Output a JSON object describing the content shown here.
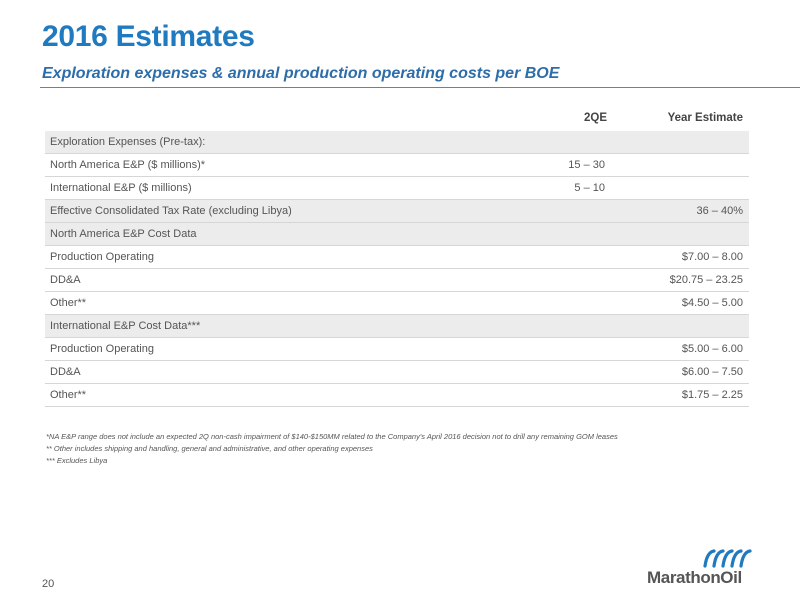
{
  "slide": {
    "title": "2016 Estimates",
    "subtitle": "Exploration expenses & annual production operating costs per BOE",
    "page_number": "20"
  },
  "table": {
    "headers": {
      "q2": "2QE",
      "year": "Year Estimate"
    },
    "rows": [
      {
        "label": "Exploration Expenses (Pre-tax):",
        "q2": "",
        "year": "",
        "shaded": true
      },
      {
        "label": "North America E&P ($ millions)*",
        "q2": "15 – 30",
        "year": "",
        "shaded": false
      },
      {
        "label": "International E&P ($ millions)",
        "q2": "5 – 10",
        "year": "",
        "shaded": false
      },
      {
        "label": "Effective Consolidated Tax Rate (excluding Libya)",
        "q2": "",
        "year": "36 – 40%",
        "shaded": true
      },
      {
        "label": "North America E&P Cost Data",
        "q2": "",
        "year": "",
        "shaded": true
      },
      {
        "label": "Production Operating",
        "q2": "",
        "year": "$7.00 – 8.00",
        "shaded": false
      },
      {
        "label": "DD&A",
        "q2": "",
        "year": "$20.75 – 23.25",
        "shaded": false
      },
      {
        "label": "Other**",
        "q2": "",
        "year": "$4.50 – 5.00",
        "shaded": false
      },
      {
        "label": "International E&P Cost Data***",
        "q2": "",
        "year": "",
        "shaded": true
      },
      {
        "label": "Production Operating",
        "q2": "",
        "year": "$5.00 – 6.00",
        "shaded": false
      },
      {
        "label": "DD&A",
        "q2": "",
        "year": "$6.00 – 7.50",
        "shaded": false
      },
      {
        "label": "Other**",
        "q2": "",
        "year": "$1.75 – 2.25",
        "shaded": false
      }
    ]
  },
  "footnotes": [
    "*NA E&P range does not include an expected 2Q non-cash impairment of $140-$150MM related to the Company's April 2016 decision not to drill any remaining GOM leases",
    "** Other includes shipping and handling, general and administrative, and other operating expenses",
    "*** Excludes Libya"
  ],
  "logo": {
    "text": "MarathonOil",
    "icon": "marathon-oil-wave-logo"
  },
  "colors": {
    "title": "#1f7ac0",
    "rule": "#1f9bd7",
    "shade": "#ececec"
  }
}
